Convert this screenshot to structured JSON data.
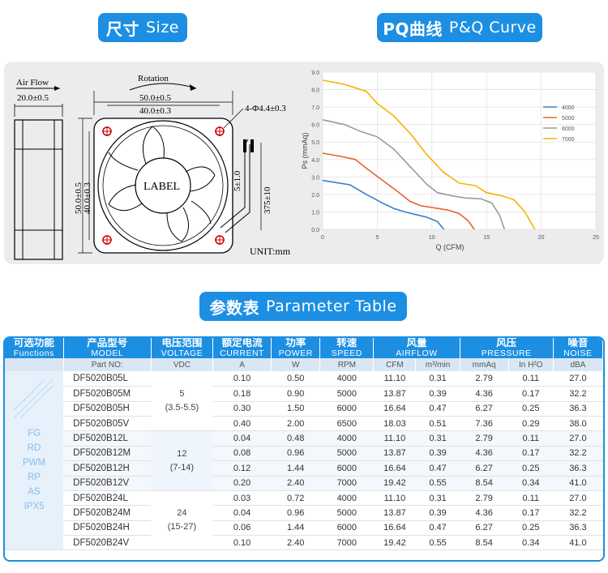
{
  "badges": {
    "size": {
      "cn": "尺寸",
      "en": "Size"
    },
    "pq": {
      "cn": "PQ曲线",
      "en": "P&Q Curve"
    },
    "param": {
      "cn": "参数表",
      "en": "Parameter Table"
    }
  },
  "drawing": {
    "air_flow": "Air Flow",
    "depth": "20.0±0.5",
    "rotation": "Rotation",
    "outer_w": "50.0±0.5",
    "inner_w": "40.0±0.3",
    "holes": "4-Φ4.4±0.3",
    "outer_h": "50.0±0.5",
    "inner_h": "40.0±0.3",
    "label": "LABEL",
    "wire_strip": "5±1.0",
    "wire_len": "375±10",
    "unit": "UNIT:mm"
  },
  "chart_data": {
    "type": "line",
    "xlabel": "Q (CFM)",
    "ylabel": "Ps (mmAq)",
    "xlim": [
      0,
      25
    ],
    "ylim": [
      0,
      9
    ],
    "x_ticks": [
      "0",
      "5",
      "10",
      "15",
      "20",
      "25"
    ],
    "y_ticks": [
      "0.0",
      "1.0",
      "2.0",
      "3.0",
      "4.0",
      "5.0",
      "6.0",
      "7.0",
      "8.0",
      "9.0"
    ],
    "grid": true,
    "legend": "right",
    "series": [
      {
        "name": "4000",
        "color": "#3b7dc8",
        "points": [
          [
            0,
            2.8
          ],
          [
            1,
            2.7
          ],
          [
            2.5,
            2.55
          ],
          [
            4,
            2.0
          ],
          [
            5.5,
            1.5
          ],
          [
            6.5,
            1.2
          ],
          [
            7.5,
            1.0
          ],
          [
            8.5,
            0.85
          ],
          [
            9.5,
            0.7
          ],
          [
            10.5,
            0.45
          ],
          [
            11.1,
            0
          ]
        ]
      },
      {
        "name": "5000",
        "color": "#e8632a",
        "points": [
          [
            0,
            4.36
          ],
          [
            1.5,
            4.2
          ],
          [
            3,
            4.0
          ],
          [
            4,
            3.5
          ],
          [
            5.5,
            2.8
          ],
          [
            7,
            2.1
          ],
          [
            8,
            1.6
          ],
          [
            9,
            1.35
          ],
          [
            10.5,
            1.2
          ],
          [
            11.5,
            1.1
          ],
          [
            12.5,
            0.9
          ],
          [
            13.3,
            0.5
          ],
          [
            13.87,
            0
          ]
        ]
      },
      {
        "name": "6000",
        "color": "#9a9a9a",
        "points": [
          [
            0,
            6.27
          ],
          [
            2,
            6.0
          ],
          [
            3.5,
            5.6
          ],
          [
            5,
            5.3
          ],
          [
            6.5,
            4.6
          ],
          [
            8,
            3.6
          ],
          [
            9.5,
            2.6
          ],
          [
            10.5,
            2.1
          ],
          [
            12,
            1.9
          ],
          [
            13,
            1.8
          ],
          [
            14.5,
            1.75
          ],
          [
            15.5,
            1.5
          ],
          [
            16.2,
            0.8
          ],
          [
            16.64,
            0
          ]
        ]
      },
      {
        "name": "7000",
        "color": "#f5b400",
        "points": [
          [
            0,
            8.54
          ],
          [
            2,
            8.3
          ],
          [
            4,
            7.9
          ],
          [
            5,
            7.2
          ],
          [
            6.5,
            6.5
          ],
          [
            8,
            5.5
          ],
          [
            9.5,
            4.3
          ],
          [
            11,
            3.3
          ],
          [
            12.5,
            2.65
          ],
          [
            14,
            2.5
          ],
          [
            15,
            2.1
          ],
          [
            16.5,
            1.9
          ],
          [
            17.5,
            1.7
          ],
          [
            18.5,
            1.0
          ],
          [
            19.42,
            0
          ]
        ]
      }
    ]
  },
  "table": {
    "headers": [
      {
        "cn": "可选功能",
        "en": "Functions"
      },
      {
        "cn": "产品型号",
        "en": "MODEL"
      },
      {
        "cn": "电压范围",
        "en": "VOLTAGE"
      },
      {
        "cn": "额定电流",
        "en": "CURRENT"
      },
      {
        "cn": "功率",
        "en": "POWER"
      },
      {
        "cn": "转速",
        "en": "SPEED"
      },
      {
        "cn": "风量",
        "en": "AIRFLOW"
      },
      {
        "cn": "风压",
        "en": "PRESSURE"
      },
      {
        "cn": "噪音",
        "en": "NOISE"
      }
    ],
    "units": [
      "Part NO:",
      "VDC",
      "A",
      "W",
      "RPM",
      "CFM",
      "m³/min",
      "mmAq",
      "In H²O",
      "dBA"
    ],
    "functions": [
      "FG",
      "RD",
      "PWM",
      "RP",
      "AS",
      "IPX5"
    ],
    "groups": [
      {
        "volt": "5",
        "range": "(3.5-5.5)",
        "rows": [
          [
            "DF5020B05L",
            "0.10",
            "0.50",
            "4000",
            "11.10",
            "0.31",
            "2.79",
            "0.11",
            "27.0"
          ],
          [
            "DF5020B05M",
            "0.18",
            "0.90",
            "5000",
            "13.87",
            "0.39",
            "4.36",
            "0.17",
            "32.2"
          ],
          [
            "DF5020B05H",
            "0.30",
            "1.50",
            "6000",
            "16.64",
            "0.47",
            "6.27",
            "0.25",
            "36.3"
          ],
          [
            "DF5020B05V",
            "0.40",
            "2.00",
            "6500",
            "18.03",
            "0.51",
            "7.36",
            "0.29",
            "38.0"
          ]
        ]
      },
      {
        "volt": "12",
        "range": "(7-14)",
        "rows": [
          [
            "DF5020B12L",
            "0.04",
            "0.48",
            "4000",
            "11.10",
            "0.31",
            "2.79",
            "0.11",
            "27.0"
          ],
          [
            "DF5020B12M",
            "0.08",
            "0.96",
            "5000",
            "13.87",
            "0.39",
            "4.36",
            "0.17",
            "32.2"
          ],
          [
            "DF5020B12H",
            "0.12",
            "1.44",
            "6000",
            "16.64",
            "0.47",
            "6.27",
            "0.25",
            "36.3"
          ],
          [
            "DF5020B12V",
            "0.20",
            "2.40",
            "7000",
            "19.42",
            "0.55",
            "8.54",
            "0.34",
            "41.0"
          ]
        ]
      },
      {
        "volt": "24",
        "range": "(15-27)",
        "rows": [
          [
            "DF5020B24L",
            "0.03",
            "0.72",
            "4000",
            "11.10",
            "0.31",
            "2.79",
            "0.11",
            "27.0"
          ],
          [
            "DF5020B24M",
            "0.04",
            "0.96",
            "5000",
            "13.87",
            "0.39",
            "4.36",
            "0.17",
            "32.2"
          ],
          [
            "DF5020B24H",
            "0.06",
            "1.44",
            "6000",
            "16.64",
            "0.47",
            "6.27",
            "0.25",
            "36.3"
          ],
          [
            "DF5020B24V",
            "0.10",
            "2.40",
            "7000",
            "19.42",
            "0.55",
            "8.54",
            "0.34",
            "41.0"
          ]
        ]
      }
    ]
  }
}
